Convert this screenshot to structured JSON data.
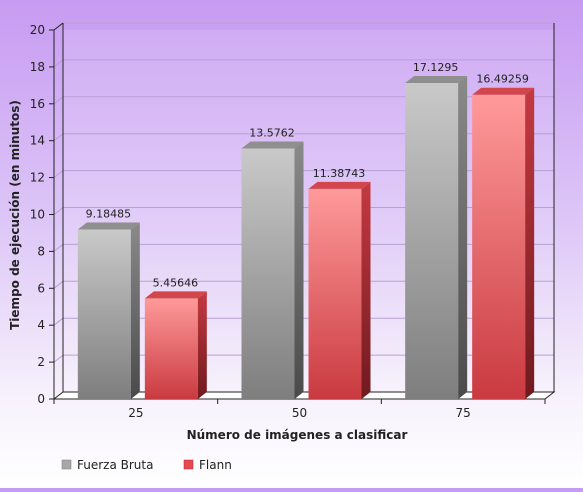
{
  "chart_data": {
    "type": "bar",
    "title": "",
    "xlabel": "Número de imágenes a clasificar",
    "ylabel": "Tiempo de ejecución (en minutos)",
    "categories": [
      "25",
      "50",
      "75"
    ],
    "series": [
      {
        "name": "Fuerza Bruta",
        "values": [
          9.18485,
          13.5762,
          17.1295
        ],
        "labels": [
          "9.18485",
          "13.5762",
          "17.1295"
        ],
        "color": "#b5b5b5"
      },
      {
        "name": "Flann",
        "values": [
          5.45646,
          11.38743,
          16.49259
        ],
        "labels": [
          "5.45646",
          "11.38743",
          "16.49259"
        ],
        "color": "#e8474f"
      }
    ],
    "ylim": [
      0,
      20
    ],
    "yticks": [
      "0",
      "2",
      "4",
      "6",
      "8",
      "10",
      "12",
      "14",
      "16",
      "18",
      "20"
    ],
    "grid": true,
    "style": "3d",
    "legend_position": "bottom-left"
  }
}
